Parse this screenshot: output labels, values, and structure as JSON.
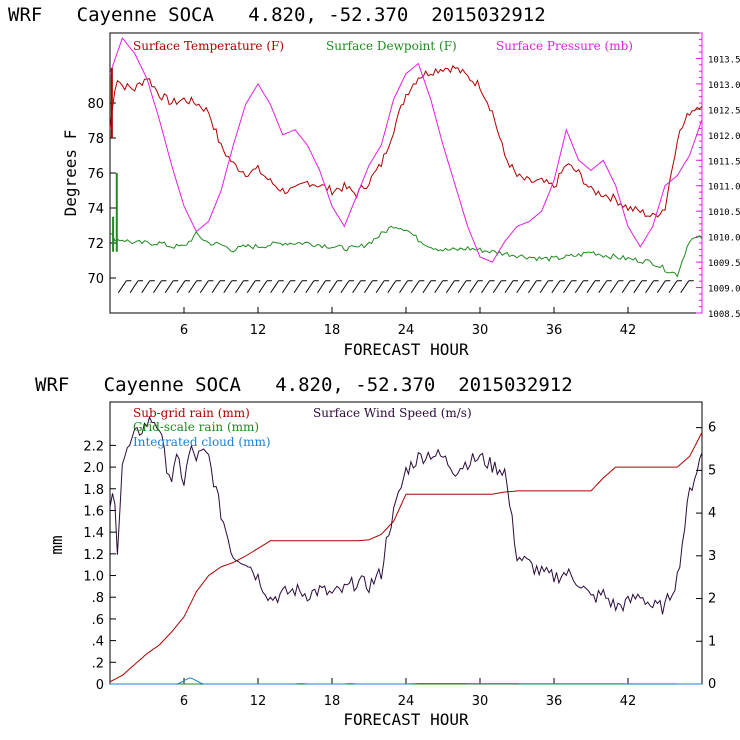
{
  "colors": {
    "temperature": "#b00000",
    "dewpoint": "#1f8a1f",
    "pressure": "#e020e0",
    "subgrid": "#b00000",
    "gridscale": "#1f8a1f",
    "cloud": "#1e7fd0",
    "wind": "#2a0a3a",
    "wind_barb": "#000000"
  },
  "chart_data": [
    {
      "type": "line",
      "title": "WRF   Cayenne SOCA   4.820, -52.370  2015032912",
      "xlabel": "FORECAST HOUR",
      "ylabel": "Degrees F",
      "xlim": [
        0,
        48
      ],
      "ylim": [
        68,
        84
      ],
      "y2lim": [
        1008.5,
        1014
      ],
      "xticks": [
        "6",
        "12",
        "18",
        "24",
        "30",
        "36",
        "42"
      ],
      "yticks": [
        "70",
        "72",
        "74",
        "76",
        "78",
        "80"
      ],
      "y2ticks": [
        "1008.5",
        "1009.0",
        "1009.5",
        "1010.0",
        "1010.5",
        "1011.0",
        "1011.5",
        "1012.0",
        "1012.5",
        "1013.0",
        "1013.5"
      ],
      "legend": [
        "Surface Temperature (F)",
        "Surface Dewpoint (F)",
        "Surface Pressure (mb)"
      ],
      "series": [
        {
          "name": "Surface Temperature (F)",
          "axis": "left",
          "x": [
            0,
            0.5,
            1,
            2,
            3,
            3.5,
            4,
            5,
            6,
            7,
            8,
            9,
            10,
            11,
            12,
            13,
            14,
            15,
            16,
            17,
            18,
            19,
            20,
            21,
            22,
            23,
            24,
            25,
            26,
            27,
            28,
            29,
            30,
            31,
            32,
            33,
            34,
            35,
            36,
            37,
            38,
            39,
            40,
            41,
            42,
            43,
            44,
            45,
            46,
            47,
            48
          ],
          "values": [
            78.5,
            81.5,
            81,
            80.8,
            81.5,
            81,
            80.5,
            80,
            80.2,
            80,
            79.5,
            77.5,
            76.5,
            76,
            76.2,
            75.5,
            75,
            75,
            75.5,
            75.3,
            75,
            75.2,
            74.8,
            75.5,
            76.5,
            78.5,
            80.5,
            81.5,
            81.8,
            82,
            82,
            81.5,
            81,
            79.5,
            77,
            75.8,
            75.5,
            75.5,
            75.2,
            76.5,
            76,
            75,
            74.8,
            74.5,
            74,
            73.8,
            73.5,
            74,
            78,
            79.5,
            80
          ]
        },
        {
          "name": "Surface Dewpoint (F)",
          "axis": "left",
          "x": [
            0,
            0.5,
            1,
            2,
            3,
            4,
            5,
            6,
            7,
            8,
            9,
            10,
            11,
            12,
            13,
            14,
            15,
            16,
            17,
            18,
            19,
            20,
            21,
            22,
            23,
            24,
            25,
            26,
            27,
            28,
            29,
            30,
            31,
            32,
            33,
            34,
            35,
            36,
            37,
            38,
            39,
            40,
            41,
            42,
            43,
            44,
            45,
            46,
            47,
            48
          ],
          "values": [
            72.5,
            72.2,
            72.2,
            72,
            72,
            72,
            71.8,
            71.8,
            72.5,
            72,
            71.9,
            71.6,
            71.8,
            71.8,
            71.9,
            72,
            72,
            72,
            71.9,
            71.8,
            71.7,
            71.7,
            72,
            72.5,
            73,
            72.8,
            72.2,
            71.8,
            71.6,
            71.6,
            71.7,
            71.6,
            71.5,
            71.4,
            71.3,
            71.2,
            71.1,
            71.1,
            71.2,
            71.3,
            71.5,
            71.3,
            71.2,
            71.1,
            71.0,
            70.9,
            70.5,
            70.2,
            72.2,
            72.3
          ]
        },
        {
          "name": "Surface Pressure (mb)",
          "axis": "right",
          "x": [
            0,
            1,
            2,
            3,
            4,
            5,
            6,
            7,
            8,
            9,
            10,
            11,
            12,
            13,
            14,
            15,
            16,
            17,
            18,
            19,
            20,
            21,
            22,
            23,
            24,
            25,
            26,
            27,
            28,
            29,
            30,
            31,
            32,
            33,
            34,
            35,
            36,
            37,
            38,
            39,
            40,
            41,
            42,
            43,
            44,
            45,
            46,
            47,
            48
          ],
          "values": [
            1013.2,
            1013.9,
            1013.6,
            1013.1,
            1012.3,
            1011.4,
            1010.6,
            1010.1,
            1010.3,
            1010.9,
            1011.8,
            1012.6,
            1013.0,
            1012.6,
            1012.0,
            1012.1,
            1011.8,
            1011.3,
            1010.6,
            1010.2,
            1010.8,
            1011.4,
            1011.8,
            1012.7,
            1013.2,
            1013.4,
            1012.7,
            1011.8,
            1011.0,
            1010.2,
            1009.6,
            1009.5,
            1009.9,
            1010.2,
            1010.3,
            1010.5,
            1011.1,
            1012.1,
            1011.5,
            1011.3,
            1011.5,
            1011.0,
            1010.2,
            1009.8,
            1010.2,
            1011.0,
            1011.2,
            1011.6,
            1012.3
          ]
        }
      ]
    },
    {
      "type": "line",
      "title": "WRF   Cayenne SOCA   4.820, -52.370  2015032912",
      "xlabel": "FORECAST HOUR",
      "ylabel": "mm",
      "xlim": [
        0,
        48
      ],
      "ylim": [
        0,
        2.6
      ],
      "y2lim": [
        0,
        6.6
      ],
      "xticks": [
        "6",
        "12",
        "18",
        "24",
        "30",
        "36",
        "42"
      ],
      "yticks": [
        "0",
        ".2",
        ".4",
        ".6",
        ".8",
        "1.0",
        "1.2",
        "1.4",
        "1.6",
        "1.8",
        "2.0",
        "2.2"
      ],
      "y2ticks": [
        "0",
        "1",
        "2",
        "3",
        "4",
        "5",
        "6"
      ],
      "legend": [
        "Sub-grid rain (mm)",
        "Grid-scale rain (mm)",
        "Integrated cloud (mm)",
        "Surface Wind Speed (m/s)"
      ],
      "series": [
        {
          "name": "Sub-grid rain (mm)",
          "axis": "left",
          "x": [
            0,
            1,
            2,
            3,
            4,
            5,
            6,
            7,
            8,
            9,
            10,
            11,
            12,
            13,
            14,
            15,
            16,
            17,
            18,
            19,
            20,
            21,
            22,
            23,
            24,
            25,
            26,
            27,
            28,
            29,
            30,
            31,
            32,
            33,
            34,
            35,
            36,
            37,
            38,
            39,
            40,
            41,
            42,
            43,
            44,
            45,
            46,
            47,
            48
          ],
          "values": [
            0.02,
            0.08,
            0.18,
            0.28,
            0.36,
            0.48,
            0.62,
            0.85,
            1.0,
            1.08,
            1.12,
            1.18,
            1.25,
            1.32,
            1.32,
            1.32,
            1.32,
            1.32,
            1.32,
            1.32,
            1.32,
            1.33,
            1.38,
            1.5,
            1.75,
            1.75,
            1.75,
            1.75,
            1.75,
            1.75,
            1.75,
            1.75,
            1.77,
            1.78,
            1.78,
            1.78,
            1.78,
            1.78,
            1.78,
            1.78,
            1.9,
            2.0,
            2.0,
            2.0,
            2.0,
            2.0,
            2.0,
            2.1,
            2.32
          ]
        },
        {
          "name": "Grid-scale rain (mm)",
          "axis": "left",
          "x": [
            0,
            48
          ],
          "values": [
            0,
            0
          ]
        },
        {
          "name": "Integrated cloud (mm)",
          "axis": "left",
          "x": [
            0,
            5.5,
            6,
            6.5,
            7,
            7.5,
            8,
            15,
            15.5,
            16,
            19,
            19.5,
            20,
            24,
            25,
            48
          ],
          "values": [
            0,
            0,
            0.03,
            0.06,
            0.03,
            0,
            0,
            0,
            0.005,
            0,
            0,
            0.005,
            0,
            0,
            0.005,
            0
          ]
        },
        {
          "name": "Surface Wind Speed (m/s)",
          "axis": "right",
          "x": [
            0,
            0.3,
            0.6,
            1,
            2,
            3,
            3.5,
            4,
            4.5,
            5,
            5.5,
            6,
            6.5,
            7,
            7.5,
            8,
            9,
            10,
            11,
            12,
            13,
            14,
            15,
            16,
            17,
            18,
            19,
            20,
            21,
            22,
            22.5,
            23,
            24,
            25,
            26,
            27,
            28,
            29,
            30,
            31,
            32,
            33,
            34,
            35,
            36,
            37,
            38,
            39,
            40,
            41,
            42,
            43,
            44,
            45,
            46,
            47,
            48
          ],
          "values": [
            4.0,
            4.6,
            3.2,
            5.2,
            5.8,
            6.1,
            6.2,
            6.0,
            5.2,
            4.8,
            5.3,
            4.7,
            5.5,
            5.3,
            5.4,
            5.3,
            4.0,
            3.0,
            2.9,
            2.5,
            2.0,
            2.1,
            2.2,
            2.1,
            2.2,
            2.1,
            2.2,
            2.4,
            2.3,
            2.6,
            3.5,
            4.0,
            5.0,
            5.3,
            5.4,
            5.3,
            5.0,
            5.2,
            5.3,
            5.1,
            5.0,
            3.0,
            2.8,
            2.6,
            2.5,
            2.6,
            2.4,
            2.0,
            2.1,
            1.8,
            1.9,
            2.1,
            1.8,
            1.8,
            2.5,
            4.5,
            5.4
          ]
        }
      ]
    }
  ]
}
